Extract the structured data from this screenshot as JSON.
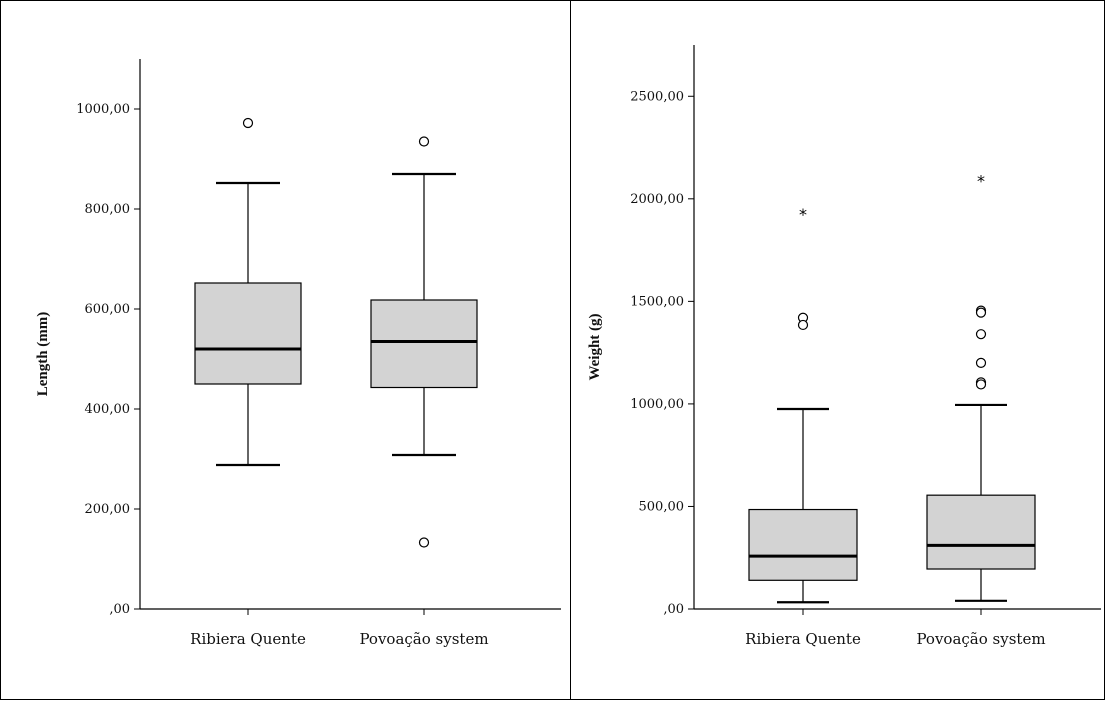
{
  "chart_data": [
    {
      "type": "box",
      "title": "",
      "xlabel": "",
      "ylabel": "Length (mm)",
      "ylim": [
        0,
        1100
      ],
      "yticks": [
        0,
        200,
        400,
        600,
        800,
        1000
      ],
      "ytick_labels": [
        ",00",
        "200,00",
        "400,00",
        "600,00",
        "800,00",
        "1000,00"
      ],
      "categories": [
        "Ribiera Quente",
        "Povoação system"
      ],
      "grid": false,
      "box_color": "#d3d3d3",
      "boxes": [
        {
          "category": "Ribiera Quente",
          "whisker_low": 288,
          "q1": 450,
          "median": 520,
          "q3": 652,
          "whisker_high": 852,
          "outliers": [
            {
              "value": 972,
              "marker": "circle"
            }
          ]
        },
        {
          "category": "Povoação system",
          "whisker_low": 308,
          "q1": 443,
          "median": 535,
          "q3": 618,
          "whisker_high": 870,
          "outliers": [
            {
              "value": 935,
              "marker": "circle"
            },
            {
              "value": 133,
              "marker": "circle"
            }
          ]
        }
      ]
    },
    {
      "type": "box",
      "title": "",
      "xlabel": "",
      "ylabel": "Weight (g)",
      "ylim": [
        0,
        2750
      ],
      "yticks": [
        0,
        500,
        1000,
        1500,
        2000,
        2500
      ],
      "ytick_labels": [
        ",00",
        "500,00",
        "1000,00",
        "1500,00",
        "2000,00",
        "2500,00"
      ],
      "categories": [
        "Ribiera Quente",
        "Povoação system"
      ],
      "grid": false,
      "box_color": "#d3d3d3",
      "boxes": [
        {
          "category": "Ribiera Quente",
          "whisker_low": 33,
          "q1": 140,
          "median": 258,
          "q3": 485,
          "whisker_high": 975,
          "outliers": [
            {
              "value": 1420,
              "marker": "circle"
            },
            {
              "value": 1385,
              "marker": "circle"
            },
            {
              "value": 1930,
              "marker": "star"
            }
          ]
        },
        {
          "category": "Povoação system",
          "whisker_low": 40,
          "q1": 195,
          "median": 310,
          "q3": 555,
          "whisker_high": 995,
          "outliers": [
            {
              "value": 1455,
              "marker": "circle"
            },
            {
              "value": 1445,
              "marker": "circle"
            },
            {
              "value": 1340,
              "marker": "circle"
            },
            {
              "value": 1200,
              "marker": "circle"
            },
            {
              "value": 1105,
              "marker": "circle"
            },
            {
              "value": 1095,
              "marker": "circle"
            },
            {
              "value": 2095,
              "marker": "star"
            }
          ]
        }
      ]
    }
  ]
}
